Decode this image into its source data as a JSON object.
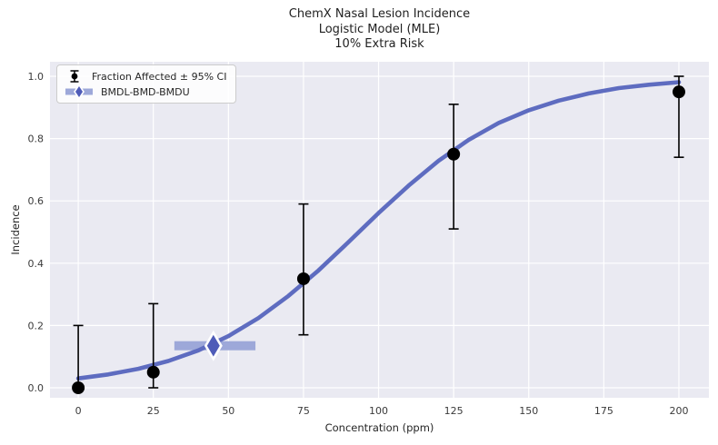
{
  "title": {
    "line1": "ChemX Nasal Lesion Incidence",
    "line2": "Logistic Model (MLE)",
    "line3": "10% Extra Risk"
  },
  "legend": {
    "items": [
      {
        "label": "Fraction Affected ± 95% CI",
        "marker": "errorbar-icon"
      },
      {
        "label": "BMDL-BMD-BMDU",
        "marker": "bmd-interval-icon"
      }
    ]
  },
  "chart_data": {
    "type": "line",
    "title": "ChemX Nasal Lesion Incidence — Logistic Model (MLE) — 10% Extra Risk",
    "xlabel": "Concentration (ppm)",
    "ylabel": "Incidence",
    "xlim": [
      -10,
      210
    ],
    "ylim": [
      -0.03,
      1.05
    ],
    "grid": true,
    "legend_position": "upper left",
    "x_ticks": [
      0,
      25,
      50,
      75,
      100,
      125,
      150,
      175,
      200
    ],
    "y_ticks": [
      0.0,
      0.2,
      0.4,
      0.6,
      0.8,
      1.0
    ],
    "series": [
      {
        "name": "logistic-model-curve",
        "type": "line",
        "color": "#5e6cc0",
        "points": [
          [
            0,
            0.03
          ],
          [
            10,
            0.043
          ],
          [
            20,
            0.061
          ],
          [
            30,
            0.086
          ],
          [
            40,
            0.12
          ],
          [
            50,
            0.166
          ],
          [
            60,
            0.224
          ],
          [
            70,
            0.295
          ],
          [
            80,
            0.377
          ],
          [
            90,
            0.468
          ],
          [
            100,
            0.561
          ],
          [
            110,
            0.649
          ],
          [
            120,
            0.729
          ],
          [
            130,
            0.796
          ],
          [
            140,
            0.85
          ],
          [
            150,
            0.891
          ],
          [
            160,
            0.922
          ],
          [
            170,
            0.945
          ],
          [
            180,
            0.962
          ],
          [
            190,
            0.973
          ],
          [
            200,
            0.981
          ]
        ]
      },
      {
        "name": "fraction-affected-with-ci",
        "type": "scatter-errorbar",
        "color": "#000000",
        "points": [
          {
            "x": 0,
            "y": 0.0,
            "ci_low": 0.0,
            "ci_high": 0.2
          },
          {
            "x": 25,
            "y": 0.05,
            "ci_low": 0.0,
            "ci_high": 0.27
          },
          {
            "x": 75,
            "y": 0.35,
            "ci_low": 0.17,
            "ci_high": 0.59
          },
          {
            "x": 125,
            "y": 0.75,
            "ci_low": 0.51,
            "ci_high": 0.91
          },
          {
            "x": 200,
            "y": 0.95,
            "ci_low": 0.74,
            "ci_high": 1.0
          }
        ]
      },
      {
        "name": "bmd-interval",
        "type": "interval",
        "bar_color": "#9da8d9",
        "diamond_color": "#4f5cb8",
        "bmdl": 32,
        "bmd": 45,
        "bmdu": 59,
        "response": 0.135
      }
    ]
  },
  "colors": {
    "plot_background": "#eaeaf2",
    "grid": "#ffffff",
    "curve": "#5e6cc0",
    "bmd_bar": "#9da8d9",
    "bmd_diamond": "#4f5cb8",
    "point": "#000000",
    "tick_text": "#3a3a3a"
  }
}
